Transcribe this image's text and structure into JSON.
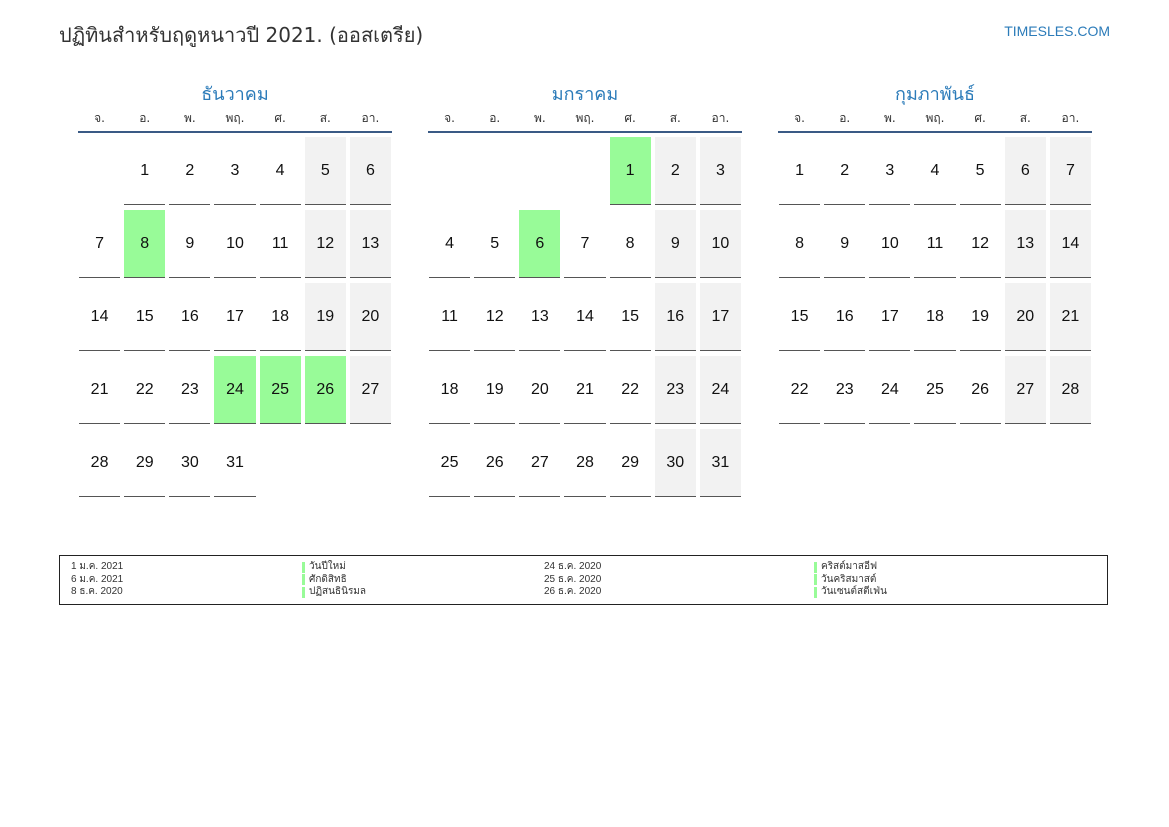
{
  "header": {
    "title": "ปฏิทินสำหรับฤดูหนาวปี 2021. (ออสเตรีย)",
    "brand": "TIMESLES.COM"
  },
  "weekdays": [
    "จ.",
    "อ.",
    "พ.",
    "พฤ.",
    "ศ.",
    "ส.",
    "อา."
  ],
  "colors": {
    "accent": "#2b7bb9",
    "holiday": "#98fb98",
    "weekend": "#f2f2f2",
    "rule": "#3a5a85"
  },
  "months": [
    {
      "name": "ธันวาคม",
      "weeks": [
        [
          "",
          "1",
          "2",
          "3",
          "4",
          "5",
          "6"
        ],
        [
          "7",
          "8",
          "9",
          "10",
          "11",
          "12",
          "13"
        ],
        [
          "14",
          "15",
          "16",
          "17",
          "18",
          "19",
          "20"
        ],
        [
          "21",
          "22",
          "23",
          "24",
          "25",
          "26",
          "27"
        ],
        [
          "28",
          "29",
          "30",
          "31",
          "",
          "",
          ""
        ]
      ],
      "holidays": [
        "8",
        "24",
        "25",
        "26"
      ]
    },
    {
      "name": "มกราคม",
      "weeks": [
        [
          "",
          "",
          "",
          "",
          "1",
          "2",
          "3"
        ],
        [
          "4",
          "5",
          "6",
          "7",
          "8",
          "9",
          "10"
        ],
        [
          "11",
          "12",
          "13",
          "14",
          "15",
          "16",
          "17"
        ],
        [
          "18",
          "19",
          "20",
          "21",
          "22",
          "23",
          "24"
        ],
        [
          "25",
          "26",
          "27",
          "28",
          "29",
          "30",
          "31"
        ]
      ],
      "holidays": [
        "1",
        "6"
      ]
    },
    {
      "name": "กุมภาพันธ์",
      "weeks": [
        [
          "1",
          "2",
          "3",
          "4",
          "5",
          "6",
          "7"
        ],
        [
          "8",
          "9",
          "10",
          "11",
          "12",
          "13",
          "14"
        ],
        [
          "15",
          "16",
          "17",
          "18",
          "19",
          "20",
          "21"
        ],
        [
          "22",
          "23",
          "24",
          "25",
          "26",
          "27",
          "28"
        ]
      ],
      "holidays": []
    }
  ],
  "legend": {
    "left": [
      {
        "date": "1 ม.ค. 2021",
        "name": "วันปีใหม่"
      },
      {
        "date": "6 ม.ค. 2021",
        "name": "ศักดิสิทธิ"
      },
      {
        "date": "8 ธ.ค. 2020",
        "name": "ปฏิสนธินิรมล"
      }
    ],
    "right": [
      {
        "date": "24 ธ.ค. 2020",
        "name": "คริสต์มาสอีฟ"
      },
      {
        "date": "25 ธ.ค. 2020",
        "name": "วันคริสมาสต์"
      },
      {
        "date": "26 ธ.ค. 2020",
        "name": "วันเซนต์สตีเฟ่น"
      }
    ]
  }
}
